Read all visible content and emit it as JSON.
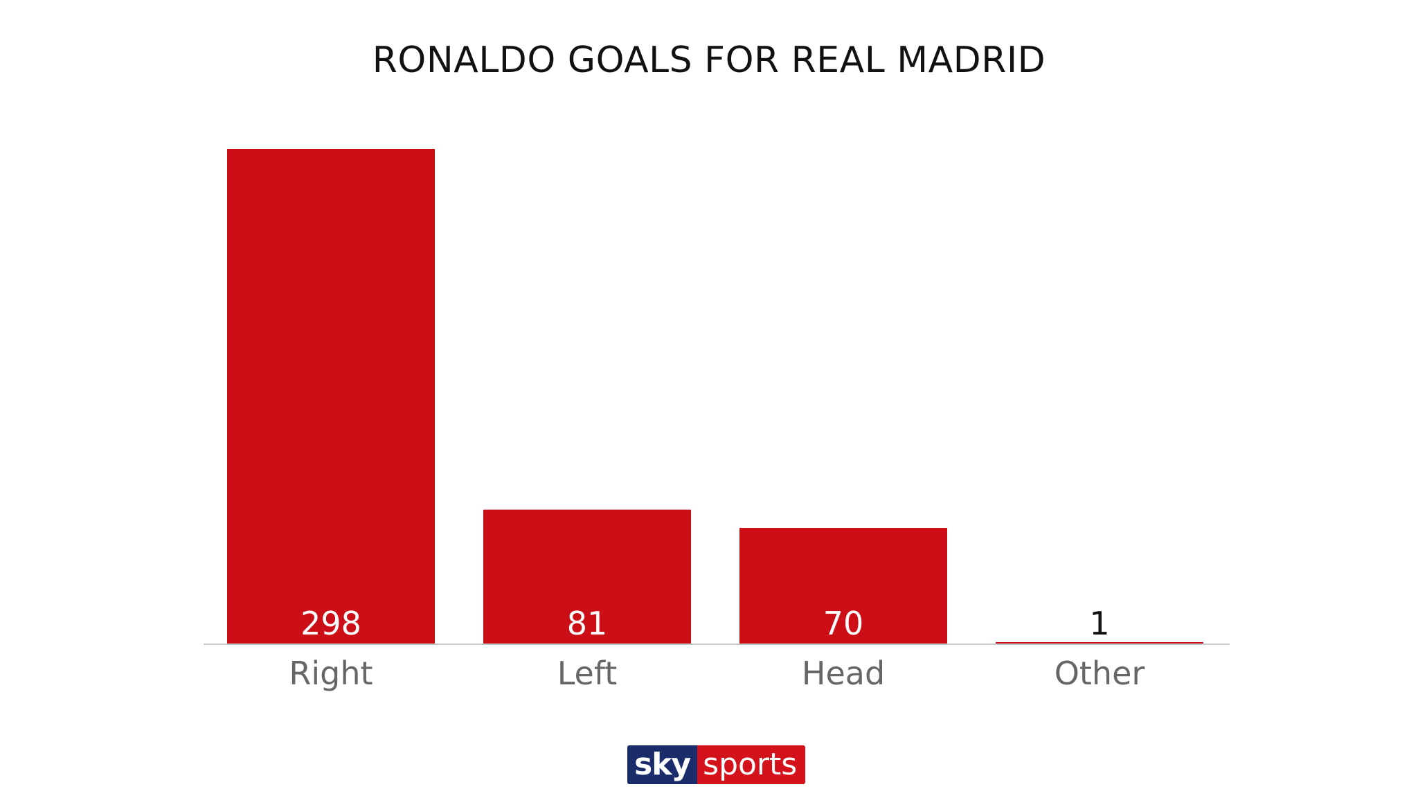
{
  "chart_data": {
    "type": "bar",
    "title": "RONALDO GOALS FOR REAL MADRID",
    "categories": [
      "Right",
      "Left",
      "Head",
      "Other"
    ],
    "values": [
      298,
      81,
      70,
      1
    ],
    "xlabel": "",
    "ylabel": "",
    "ylim": [
      0,
      298
    ],
    "grid": false,
    "legend": "none",
    "bar_color": "#cc0f16",
    "value_label_colors": [
      "#ffffff",
      "#ffffff",
      "#ffffff",
      "#111111"
    ]
  },
  "logo": {
    "sky": "sky",
    "sports": "sports"
  }
}
